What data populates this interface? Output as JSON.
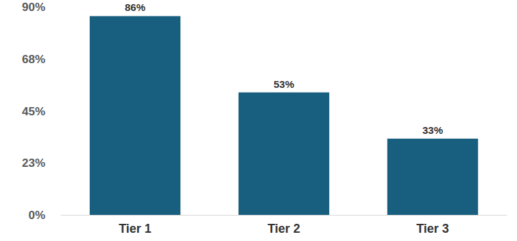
{
  "chart_data": {
    "type": "bar",
    "categories": [
      "Tier 1",
      "Tier 2",
      "Tier 3"
    ],
    "values": [
      86,
      53,
      33
    ],
    "value_labels": [
      "86%",
      "53%",
      "33%"
    ],
    "data_labels": true,
    "color": "#175e7f",
    "ylim": [
      0,
      90
    ],
    "yticks": [
      {
        "value": 0,
        "label": "0%"
      },
      {
        "value": 22.5,
        "label": "23%"
      },
      {
        "value": 45,
        "label": "45%"
      },
      {
        "value": 67.5,
        "label": "68%"
      },
      {
        "value": 90,
        "label": "90%"
      }
    ],
    "grid": false
  }
}
